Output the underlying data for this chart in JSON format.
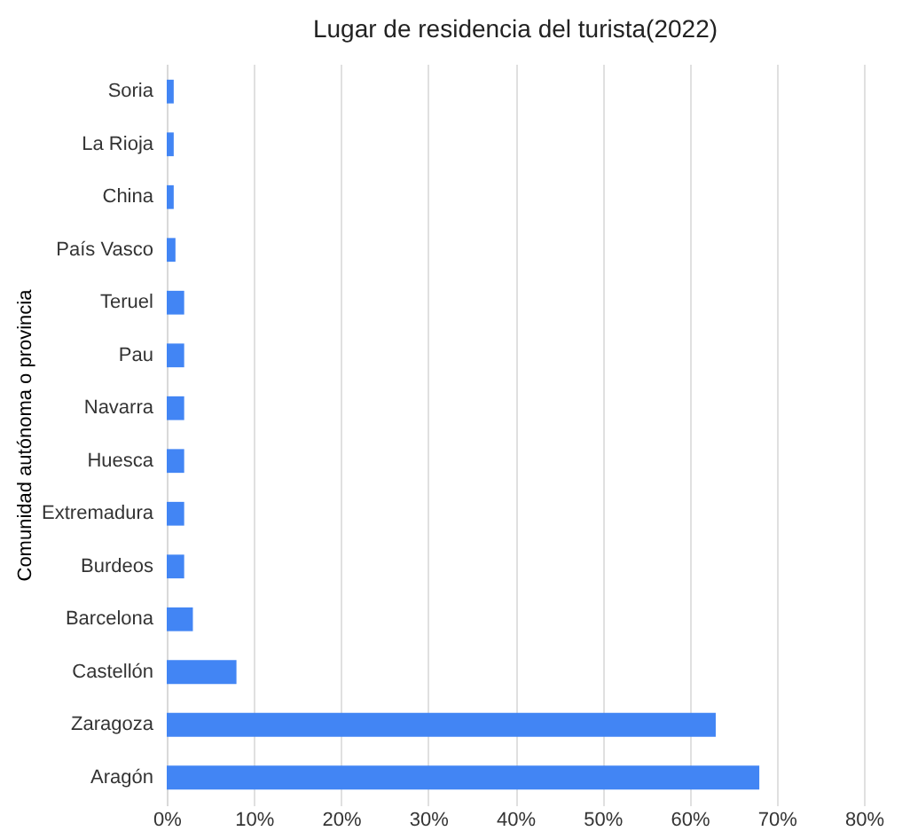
{
  "chart_data": {
    "type": "bar",
    "orientation": "horizontal",
    "title": "Lugar de residencia del turista(2022)",
    "ylabel": "Comunidad autónoma o provincia",
    "categories": [
      "Soria",
      "La Rioja",
      "China",
      "País Vasco",
      "Teruel",
      "Pau",
      "Navarra",
      "Huesca",
      "Extremadura",
      "Burdeos",
      "Barcelona",
      "Castellón",
      "Zaragoza",
      "Aragón"
    ],
    "values": [
      0.8,
      0.8,
      0.8,
      1,
      2,
      2,
      2,
      2,
      2,
      2,
      3,
      8,
      63,
      68
    ],
    "color": "#4285f4",
    "xlim": [
      0,
      80
    ],
    "xticks": [
      {
        "value": 0,
        "label": "0%"
      },
      {
        "value": 10,
        "label": "10%"
      },
      {
        "value": 20,
        "label": "20%"
      },
      {
        "value": 30,
        "label": "30%"
      },
      {
        "value": 40,
        "label": "40%"
      },
      {
        "value": 50,
        "label": "50%"
      },
      {
        "value": 60,
        "label": "60%"
      },
      {
        "value": 70,
        "label": "70%"
      },
      {
        "value": 80,
        "label": "80%"
      }
    ],
    "grid": "x"
  }
}
